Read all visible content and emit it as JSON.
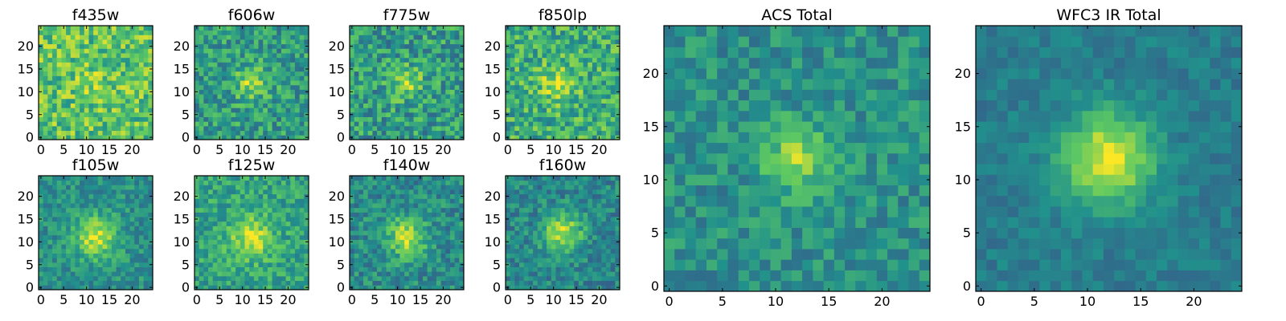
{
  "chart_data": {
    "type": "heatmap",
    "colormap": "viridis",
    "colors": [
      "#440154",
      "#3b528b",
      "#21918c",
      "#5ec962",
      "#fde725"
    ],
    "grid": false,
    "size": [
      25,
      25
    ],
    "panels": [
      {
        "title": "f435w",
        "xticks": [
          "0",
          "5",
          "10",
          "15",
          "20"
        ],
        "yticks": [
          "0",
          "5",
          "10",
          "15",
          "20"
        ],
        "peak": [
          12,
          12
        ],
        "sigma": 3.0,
        "amp": 0.08,
        "base": 0.72,
        "noise": 0.22,
        "seed": 11
      },
      {
        "title": "f606w",
        "xticks": [
          "0",
          "5",
          "10",
          "15",
          "20"
        ],
        "yticks": [
          "0",
          "5",
          "10",
          "15",
          "20"
        ],
        "peak": [
          12,
          12
        ],
        "sigma": 2.5,
        "amp": 0.3,
        "base": 0.55,
        "noise": 0.2,
        "seed": 23
      },
      {
        "title": "f775w",
        "xticks": [
          "0",
          "5",
          "10",
          "15",
          "20"
        ],
        "yticks": [
          "0",
          "5",
          "10",
          "15",
          "20"
        ],
        "peak": [
          12,
          12
        ],
        "sigma": 2.5,
        "amp": 0.28,
        "base": 0.55,
        "noise": 0.22,
        "seed": 37
      },
      {
        "title": "f850lp",
        "xticks": [
          "0",
          "5",
          "10",
          "15",
          "20"
        ],
        "yticks": [
          "0",
          "5",
          "10",
          "15",
          "20"
        ],
        "peak": [
          11,
          12
        ],
        "sigma": 3.0,
        "amp": 0.25,
        "base": 0.62,
        "noise": 0.22,
        "seed": 41
      },
      {
        "title": "f105w",
        "xticks": [
          "0",
          "5",
          "10",
          "15",
          "20"
        ],
        "yticks": [
          "0",
          "5",
          "10",
          "15",
          "20"
        ],
        "peak": [
          12,
          11
        ],
        "sigma": 3.2,
        "amp": 0.42,
        "base": 0.5,
        "noise": 0.14,
        "seed": 53
      },
      {
        "title": "f125w",
        "xticks": [
          "0",
          "5",
          "10",
          "15",
          "20"
        ],
        "yticks": [
          "0",
          "5",
          "10",
          "15",
          "20"
        ],
        "peak": [
          12,
          11
        ],
        "sigma": 3.2,
        "amp": 0.35,
        "base": 0.58,
        "noise": 0.16,
        "seed": 67
      },
      {
        "title": "f140w",
        "xticks": [
          "0",
          "5",
          "10",
          "15",
          "20"
        ],
        "yticks": [
          "0",
          "5",
          "10",
          "15",
          "20"
        ],
        "peak": [
          12,
          11
        ],
        "sigma": 3.0,
        "amp": 0.42,
        "base": 0.48,
        "noise": 0.16,
        "seed": 71
      },
      {
        "title": "f160w",
        "xticks": [
          "0",
          "5",
          "10",
          "15",
          "20"
        ],
        "yticks": [
          "0",
          "5",
          "10",
          "15",
          "20"
        ],
        "peak": [
          12,
          12
        ],
        "sigma": 3.0,
        "amp": 0.45,
        "base": 0.46,
        "noise": 0.15,
        "seed": 83
      },
      {
        "title": "ACS Total",
        "xticks": [
          "0",
          "5",
          "10",
          "15",
          "20"
        ],
        "yticks": [
          "0",
          "5",
          "10",
          "15",
          "20"
        ],
        "peak": [
          12,
          12
        ],
        "sigma": 2.2,
        "amp": 0.35,
        "base": 0.5,
        "noise": 0.14,
        "seed": 97
      },
      {
        "title": "WFC3 IR Total",
        "xticks": [
          "0",
          "5",
          "10",
          "15",
          "20"
        ],
        "yticks": [
          "0",
          "5",
          "10",
          "15",
          "20"
        ],
        "peak": [
          12,
          12
        ],
        "sigma": 3.0,
        "amp": 0.55,
        "base": 0.42,
        "noise": 0.08,
        "seed": 101
      }
    ]
  }
}
